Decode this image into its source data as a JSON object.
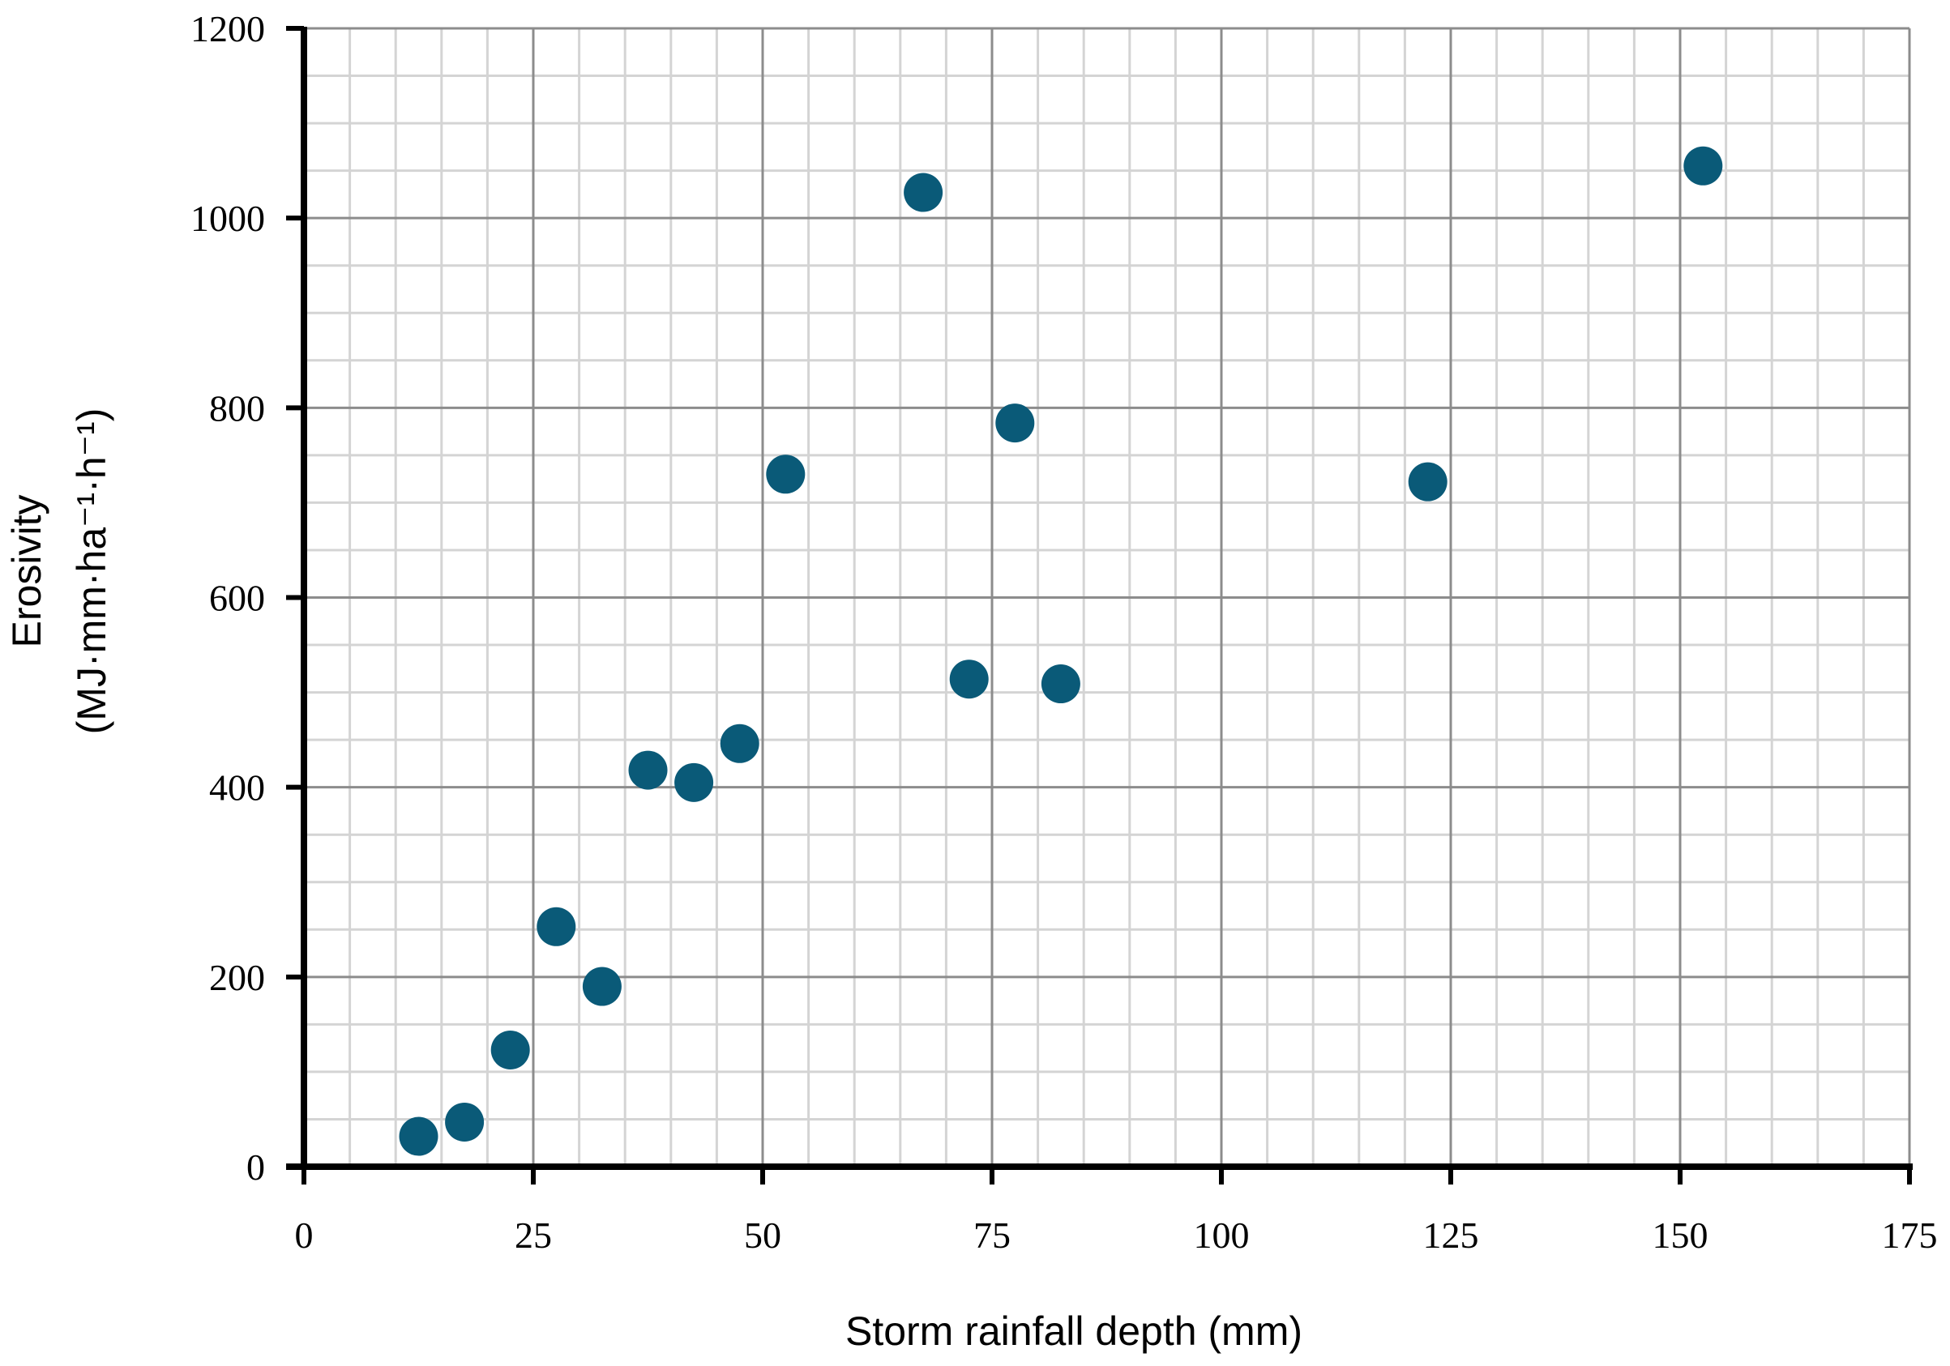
{
  "chart_data": {
    "type": "scatter",
    "xlabel": "Storm rainfall depth (mm)",
    "ylabel_line1": "Erosivity",
    "ylabel_line2": "(MJ·mm·ha⁻¹·h⁻¹)",
    "xlim": [
      0,
      175
    ],
    "ylim": [
      0,
      1200
    ],
    "xticks": [
      0,
      25,
      50,
      75,
      100,
      125,
      150,
      175
    ],
    "yticks": [
      0,
      200,
      400,
      600,
      800,
      1000,
      1200
    ],
    "x_minor_step": 5,
    "y_minor_step": 50,
    "grid": true,
    "marker_color": "#0a5a78",
    "points": [
      {
        "x": 12.5,
        "y": 32
      },
      {
        "x": 17.5,
        "y": 47
      },
      {
        "x": 22.5,
        "y": 123
      },
      {
        "x": 27.5,
        "y": 253
      },
      {
        "x": 32.5,
        "y": 190
      },
      {
        "x": 37.5,
        "y": 418
      },
      {
        "x": 42.5,
        "y": 405
      },
      {
        "x": 47.5,
        "y": 446
      },
      {
        "x": 52.5,
        "y": 730
      },
      {
        "x": 67.5,
        "y": 1027
      },
      {
        "x": 72.5,
        "y": 514
      },
      {
        "x": 77.5,
        "y": 784
      },
      {
        "x": 82.5,
        "y": 509
      },
      {
        "x": 122.5,
        "y": 722
      },
      {
        "x": 152.5,
        "y": 1055
      }
    ]
  }
}
